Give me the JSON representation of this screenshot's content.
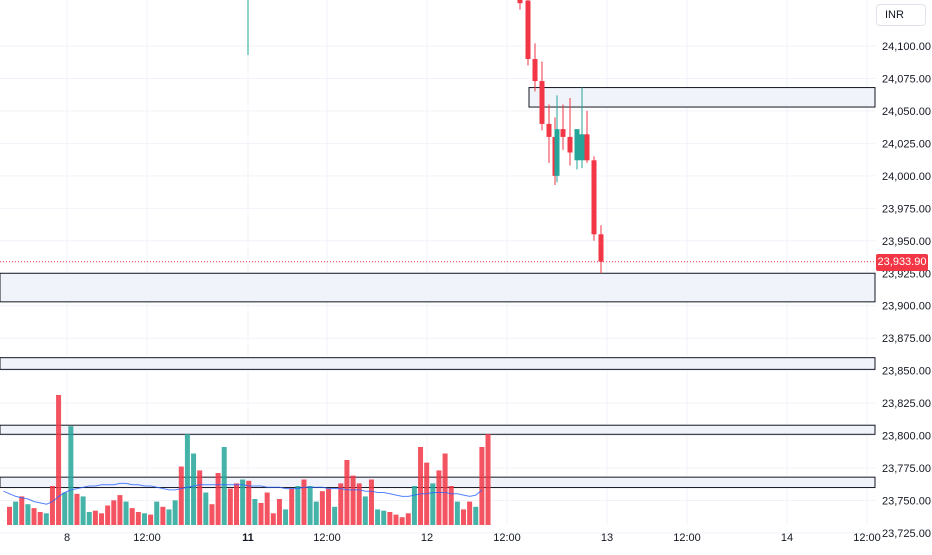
{
  "currency": "INR",
  "last_price_label": "23,933.90",
  "colors": {
    "up": "#26a69a",
    "down": "#f23645",
    "ma": "#2962ff",
    "zone_fill": "#f0f3fa",
    "zone_stroke": "#131722",
    "grid": "#f0f3fa"
  },
  "chart_data": {
    "type": "candlestick",
    "ylim": [
      23708,
      24140
    ],
    "y_ticks": [
      24100,
      24075,
      24050,
      24025,
      24000,
      23975,
      23950,
      23925,
      23900,
      23875,
      23850,
      23825,
      23800,
      23775,
      23750,
      23725
    ],
    "y_tick_labels": [
      "24,100.00",
      "24,075.00",
      "24,050.00",
      "24,025.00",
      "24,000.00",
      "23,975.00",
      "23,950.00",
      "23,925.00",
      "23,900.00",
      "23,875.00",
      "23,850.00",
      "23,825.00",
      "23,800.00",
      "23,775.00",
      "23,750.00",
      "23,725.00"
    ],
    "x_tick_labels": [
      {
        "label": "8",
        "bold": false
      },
      {
        "label": "12:00",
        "bold": false
      },
      {
        "label": "11",
        "bold": true
      },
      {
        "label": "12:00",
        "bold": false
      },
      {
        "label": "12",
        "bold": false
      },
      {
        "label": "12:00",
        "bold": false
      },
      {
        "label": "13",
        "bold": false
      },
      {
        "label": "12:00",
        "bold": false
      },
      {
        "label": "14",
        "bold": false
      },
      {
        "label": "12:00",
        "bold": false
      }
    ],
    "last_price": 23933.9,
    "zones": [
      {
        "low": 24053,
        "high": 24068,
        "from_bar": "2024-11-12 12:15"
      },
      {
        "low": 23903,
        "high": 23925
      },
      {
        "low": 23851,
        "high": 23860
      },
      {
        "low": 23801,
        "high": 23808
      },
      {
        "low": 23760,
        "high": 23768
      }
    ],
    "candles": [
      {
        "t": "2024-11-11 09:15",
        "open": 24135,
        "high": 24180,
        "low": 24093,
        "close": 24140
      },
      {
        "t": "2024-11-12 12:00",
        "open": 24148,
        "high": 24150,
        "low": 24128,
        "close": 24133
      },
      {
        "t": "2024-11-12 12:15",
        "open": 24135,
        "high": 24140,
        "low": 24085,
        "close": 24090
      },
      {
        "t": "2024-11-12 12:30",
        "open": 24090,
        "high": 24102,
        "low": 24065,
        "close": 24073
      },
      {
        "t": "2024-11-12 12:45",
        "open": 24073,
        "high": 24088,
        "low": 24035,
        "close": 24040
      },
      {
        "t": "2024-11-12 13:00",
        "open": 24040,
        "high": 24055,
        "low": 24010,
        "close": 24030
      },
      {
        "t": "2024-11-12 13:15",
        "open": 24030,
        "high": 24045,
        "low": 23993,
        "close": 24000
      },
      {
        "t": "2024-11-12 13:30",
        "open": 24000,
        "high": 24062,
        "low": 23995,
        "close": 24036
      },
      {
        "t": "2024-11-12 13:45",
        "open": 24036,
        "high": 24055,
        "low": 24020,
        "close": 24030
      },
      {
        "t": "2024-11-12 14:00",
        "open": 24030,
        "high": 24060,
        "low": 24008,
        "close": 24018
      },
      {
        "t": "2024-11-12 14:15",
        "open": 24012,
        "high": 24033,
        "low": 24005,
        "close": 24036
      },
      {
        "t": "2024-11-12 14:30",
        "open": 24012,
        "high": 24068,
        "low": 24006,
        "close": 24032
      },
      {
        "t": "2024-11-12 14:45",
        "open": 24032,
        "high": 24050,
        "low": 24010,
        "close": 24012
      },
      {
        "t": "2024-11-12 15:00",
        "open": 24012,
        "high": 24015,
        "low": 23950,
        "close": 23955
      },
      {
        "t": "2024-11-12 15:15",
        "open": 23955,
        "high": 23962,
        "low": 23940,
        "close": 23948
      },
      {
        "t": "2024-11-12 15:30",
        "open": 23948,
        "high": 23955,
        "low": 23925,
        "close": 23933.9
      }
    ],
    "volume": [
      {
        "v": 14,
        "up": false
      },
      {
        "v": 18,
        "up": true
      },
      {
        "v": 22,
        "up": false
      },
      {
        "v": 16,
        "up": true
      },
      {
        "v": 13,
        "up": false
      },
      {
        "v": 10,
        "up": false
      },
      {
        "v": 9,
        "up": true
      },
      {
        "v": 30,
        "up": false
      },
      {
        "v": 100,
        "up": false
      },
      {
        "v": 25,
        "up": true
      },
      {
        "v": 76,
        "up": true
      },
      {
        "v": 24,
        "up": false
      },
      {
        "v": 22,
        "up": true
      },
      {
        "v": 10,
        "up": true
      },
      {
        "v": 11,
        "up": false
      },
      {
        "v": 9,
        "up": false
      },
      {
        "v": 15,
        "up": false
      },
      {
        "v": 19,
        "up": false
      },
      {
        "v": 23,
        "up": false
      },
      {
        "v": 18,
        "up": true
      },
      {
        "v": 13,
        "up": false
      },
      {
        "v": 10,
        "up": false
      },
      {
        "v": 9,
        "up": true
      },
      {
        "v": 8,
        "up": false
      },
      {
        "v": 18,
        "up": true
      },
      {
        "v": 14,
        "up": false
      },
      {
        "v": 12,
        "up": true
      },
      {
        "v": 19,
        "up": true
      },
      {
        "v": 45,
        "up": false
      },
      {
        "v": 70,
        "up": true
      },
      {
        "v": 55,
        "up": true
      },
      {
        "v": 42,
        "up": false
      },
      {
        "v": 25,
        "up": true
      },
      {
        "v": 16,
        "up": false
      },
      {
        "v": 40,
        "up": false
      },
      {
        "v": 60,
        "up": true
      },
      {
        "v": 28,
        "up": false
      },
      {
        "v": 32,
        "up": false
      },
      {
        "v": 35,
        "up": true
      },
      {
        "v": 34,
        "up": false
      },
      {
        "v": 20,
        "up": true
      },
      {
        "v": 17,
        "up": false
      },
      {
        "v": 25,
        "up": false
      },
      {
        "v": 9,
        "up": false
      },
      {
        "v": 20,
        "up": false
      },
      {
        "v": 12,
        "up": true
      },
      {
        "v": 28,
        "up": false
      },
      {
        "v": 30,
        "up": true
      },
      {
        "v": 35,
        "up": false
      },
      {
        "v": 30,
        "up": true
      },
      {
        "v": 18,
        "up": true
      },
      {
        "v": 26,
        "up": false
      },
      {
        "v": 28,
        "up": false
      },
      {
        "v": 14,
        "up": true
      },
      {
        "v": 32,
        "up": false
      },
      {
        "v": 50,
        "up": false
      },
      {
        "v": 38,
        "up": false
      },
      {
        "v": 32,
        "up": false
      },
      {
        "v": 22,
        "up": true
      },
      {
        "v": 35,
        "up": false
      },
      {
        "v": 12,
        "up": true
      },
      {
        "v": 11,
        "up": true
      },
      {
        "v": 10,
        "up": false
      },
      {
        "v": 8,
        "up": false
      },
      {
        "v": 6,
        "up": false
      },
      {
        "v": 9,
        "up": false
      },
      {
        "v": 30,
        "up": true
      },
      {
        "v": 60,
        "up": false
      },
      {
        "v": 48,
        "up": false
      },
      {
        "v": 32,
        "up": true
      },
      {
        "v": 42,
        "up": false
      },
      {
        "v": 55,
        "up": false
      },
      {
        "v": 30,
        "up": false
      },
      {
        "v": 18,
        "up": true
      },
      {
        "v": 12,
        "up": false
      },
      {
        "v": 18,
        "up": false
      },
      {
        "v": 14,
        "up": true
      },
      {
        "v": 60,
        "up": false
      },
      {
        "v": 70,
        "up": false
      }
    ],
    "volume_ma": [
      26,
      24,
      22,
      21,
      20,
      18,
      17,
      16,
      18,
      22,
      25,
      27,
      28,
      29,
      30,
      30,
      31,
      31,
      31,
      32,
      32,
      31,
      31,
      30,
      30,
      29,
      28,
      27,
      27,
      28,
      29,
      30,
      31,
      31,
      31,
      31,
      31,
      31,
      31,
      31,
      30,
      30,
      30,
      29,
      29,
      29,
      28,
      28,
      28,
      29,
      29,
      29,
      29,
      28,
      28,
      28,
      27,
      27,
      27,
      26,
      26,
      25,
      25,
      24,
      23,
      22,
      22,
      23,
      24,
      24,
      25,
      25,
      25,
      24,
      24,
      23,
      22,
      23,
      27
    ]
  }
}
